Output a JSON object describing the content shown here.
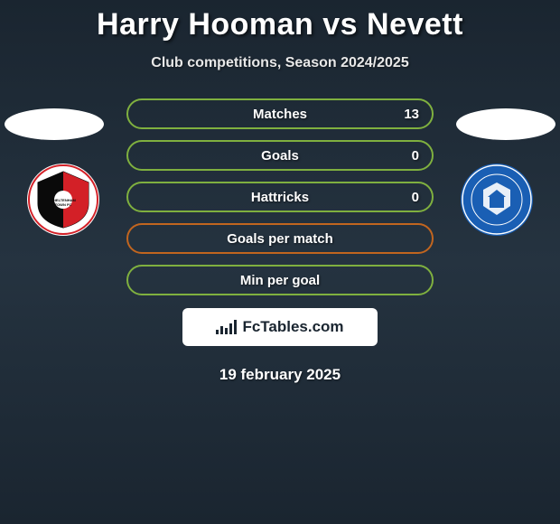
{
  "header": {
    "title": "Harry Hooman vs Nevett",
    "subtitle": "Club competitions, Season 2024/2025"
  },
  "stats": [
    {
      "label": "Matches",
      "right_value": "13",
      "border_color": "#7fb03f"
    },
    {
      "label": "Goals",
      "right_value": "0",
      "border_color": "#7fb03f"
    },
    {
      "label": "Hattricks",
      "right_value": "0",
      "border_color": "#7fb03f"
    },
    {
      "label": "Goals per match",
      "right_value": "",
      "border_color": "#c1651f"
    },
    {
      "label": "Min per goal",
      "right_value": "",
      "border_color": "#7fb03f"
    }
  ],
  "branding": {
    "label": "FcTables.com"
  },
  "date": "19 february 2025",
  "clubs": {
    "left": {
      "name": "Cheltenham Town FC",
      "badge_bg": "#ffffff",
      "badge_accent": "#d32027",
      "badge_dark": "#0a0a0a"
    },
    "right": {
      "name": "Peterborough United Football Club",
      "badge_bg": "#1a5fb4",
      "badge_accent": "#ffffff"
    }
  },
  "styling": {
    "background_gradient": [
      "#1a2530",
      "#253340",
      "#1a2530"
    ],
    "title_color": "#ffffff",
    "title_fontsize": 34,
    "subtitle_fontsize": 16,
    "stat_pill_width": 340,
    "stat_pill_height": 34,
    "stat_label_color": "#ffffff",
    "silhouette_color": "#ffffff"
  }
}
